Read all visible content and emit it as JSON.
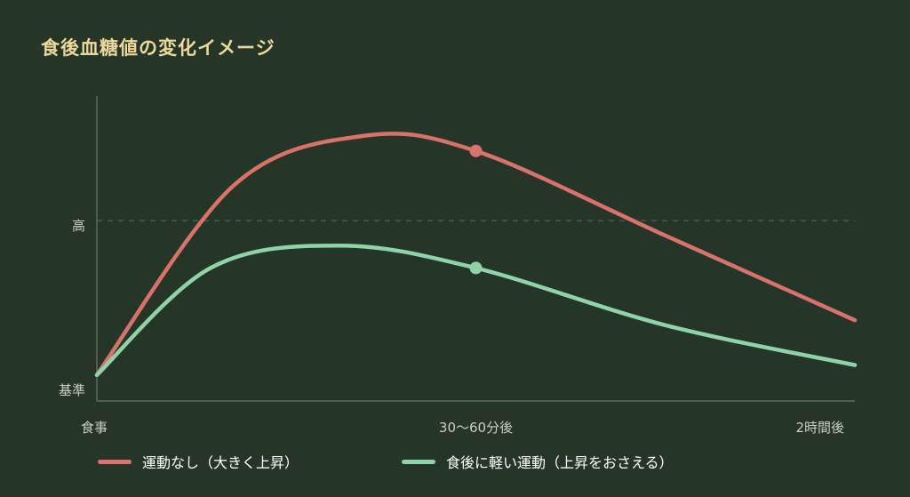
{
  "chart_data": {
    "type": "line",
    "title": "食後血糖値の変化イメージ",
    "xlabel": "",
    "ylabel": "",
    "x_ticks": [
      {
        "t": 0,
        "label": "食事"
      },
      {
        "t": 50,
        "label": "30〜60分後"
      },
      {
        "t": 100,
        "label": "2時間後"
      }
    ],
    "y_ticks": [
      {
        "v": 0,
        "label": "基準"
      },
      {
        "v": 66,
        "label": "高"
      }
    ],
    "xlim": [
      0,
      100
    ],
    "ylim": [
      0,
      100
    ],
    "reference_line": {
      "v": 66,
      "style": "dashed"
    },
    "grid": false,
    "legend_position": "bottom",
    "series": [
      {
        "name": "運動なし（大きく上昇）",
        "color": "#d9736a",
        "points": [
          {
            "x": 0,
            "y": 4
          },
          {
            "x": 18,
            "y": 80
          },
          {
            "x": 35,
            "y": 100
          },
          {
            "x": 50,
            "y": 94
          },
          {
            "x": 75,
            "y": 60
          },
          {
            "x": 100,
            "y": 26
          }
        ],
        "marker": {
          "x": 50,
          "y": 94
        }
      },
      {
        "name": "食後に軽い運動（上昇をおさえる）",
        "color": "#8ed4a4",
        "points": [
          {
            "x": 0,
            "y": 4
          },
          {
            "x": 15,
            "y": 47
          },
          {
            "x": 32,
            "y": 56
          },
          {
            "x": 50,
            "y": 47
          },
          {
            "x": 75,
            "y": 24
          },
          {
            "x": 100,
            "y": 8
          }
        ],
        "marker": {
          "x": 50,
          "y": 47
        }
      }
    ]
  }
}
